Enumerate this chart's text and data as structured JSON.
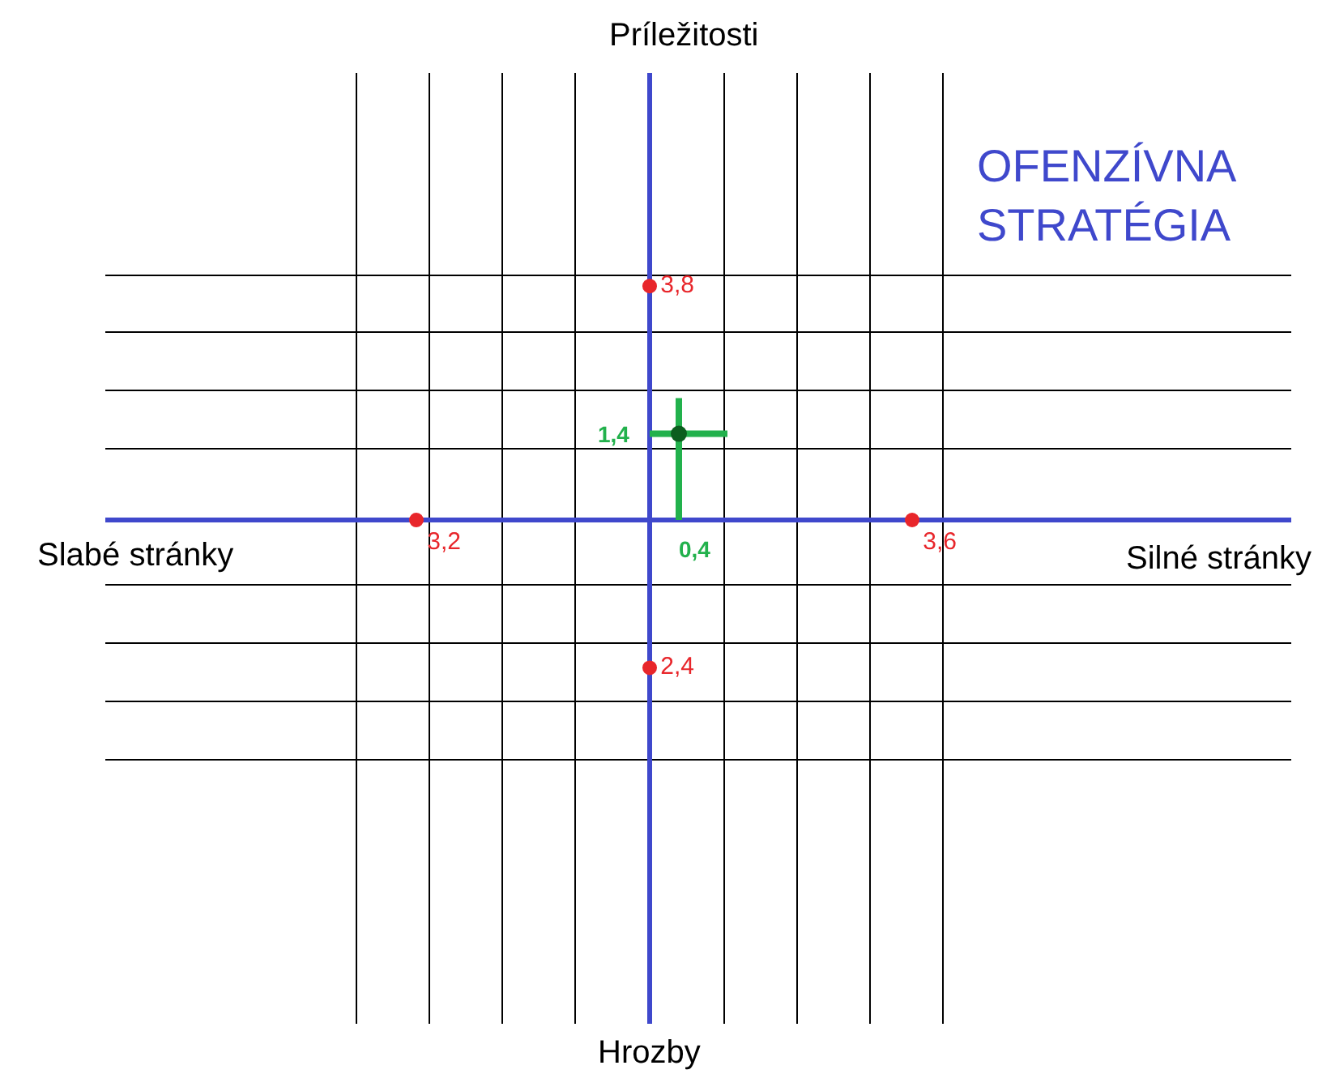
{
  "chart_data": {
    "type": "other",
    "categories": [
      "Slabé stránky",
      "Silné stránky",
      "Príležitosti",
      "Hrozby"
    ],
    "series": [
      {
        "color": "#e8262b",
        "marker": "circle",
        "values": [
          3.2,
          3.6,
          3.8,
          2.4
        ],
        "value_labels": [
          "3,2",
          "3,6",
          "3,8",
          "2,4"
        ]
      },
      {
        "color": "#22b14c",
        "marker": "cross",
        "values": [
          null,
          0.4,
          1.4,
          null
        ],
        "value_labels": [
          null,
          "0,4",
          "1,4",
          null
        ]
      }
    ],
    "annotations": [
      "OFENZÍVNA STRATÉGIA"
    ]
  }
}
